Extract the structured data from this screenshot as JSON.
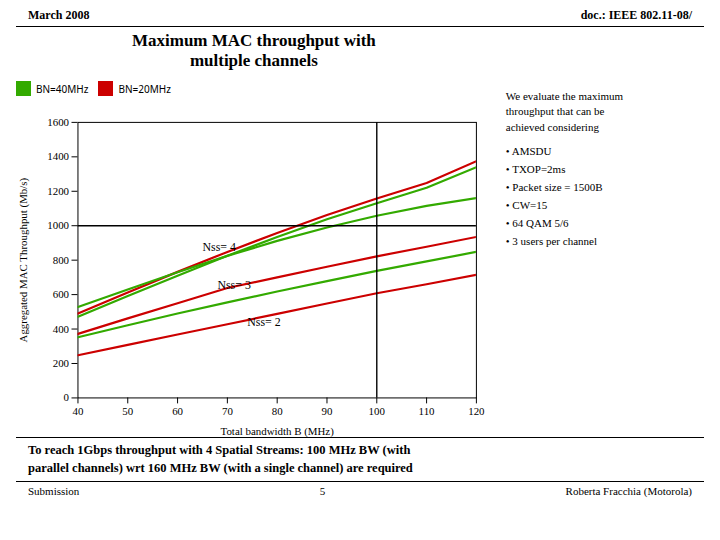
{
  "chart_data": {
    "type": "line",
    "title": "Maximum MAC throughput with\nmultiple channels",
    "header": [
      "March 2008",
      "doc.: IEEE 802.11-08/"
    ],
    "footer": [
      "Submission",
      "5",
      "Roberta Fracchia (Motorola)"
    ],
    "xlabel": "Total bandwidth B (MHz)",
    "ylabel": "Aggregated MAC Throughput (Mb/s)",
    "xlim": [
      40,
      120
    ],
    "ylim": [
      0,
      1600
    ],
    "xticks": [
      40,
      50,
      60,
      70,
      80,
      90,
      100,
      110,
      120
    ],
    "yticks": [
      0,
      200,
      400,
      600,
      800,
      1000,
      1200,
      1400,
      1600
    ],
    "grid": false,
    "legend": "upper left",
    "x": [
      40,
      50,
      60,
      70,
      80,
      90,
      100,
      110,
      120
    ],
    "series": [
      {
        "name": "BN=40MHz",
        "color": "#33aa00",
        "values": [
          472,
          592,
          710,
          826,
          934,
          1038,
          1130,
          1220,
          1340
        ]
      },
      {
        "name": "BN=20MHz",
        "color": "#cc0000",
        "values": [
          490,
          612,
          732,
          848,
          958,
          1062,
          1158,
          1248,
          1375
        ]
      },
      {
        "name": "BN=40MHz",
        "color": "#33aa00",
        "values": [
          528,
          630,
          730,
          825,
          912,
          990,
          1058,
          1115,
          1160
        ]
      },
      {
        "name": "BN=20MHz",
        "color": "#cc0000",
        "values": [
          372,
          462,
          550,
          638,
          700,
          762,
          822,
          878,
          935
        ]
      },
      {
        "name": "BN=40MHz",
        "color": "#33aa00",
        "values": [
          352,
          422,
          490,
          555,
          618,
          678,
          738,
          793,
          848
        ]
      },
      {
        "name": "BN=20MHz",
        "color": "#cc0000",
        "values": [
          248,
          308,
          368,
          428,
          488,
          548,
          608,
          660,
          715
        ]
      }
    ],
    "vline": 100,
    "hline": 1000,
    "annotations": [
      {
        "text": "Nss= 4",
        "x": 65,
        "y": 855
      },
      {
        "text": "Nss= 3",
        "x": 68,
        "y": 635
      },
      {
        "text": "Nss= 2",
        "x": 74,
        "y": 415
      }
    ],
    "notes": {
      "title": "We evaluate the maximum\nthroughput that can be\nachieved considering",
      "bullets": [
        "• AMSDU",
        "• TXOP=2ms",
        "• Packet size = 1500B",
        "• CW=15",
        "• 64 QAM 5/6",
        "• 3 users per channel"
      ]
    },
    "caption": [
      "To reach 1Gbps throughput with 4 Spatial Streams: 100 MHz BW (with",
      "parallel channels) wrt 160 MHz BW (with a single channel) are required"
    ]
  }
}
